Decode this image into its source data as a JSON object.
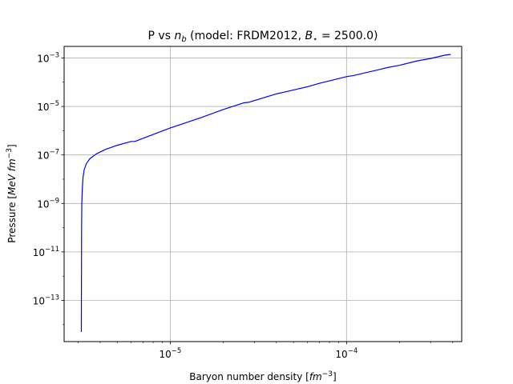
{
  "chart_data": {
    "type": "line",
    "title_prefix": "P vs ",
    "title_var": "n",
    "title_var_sub": "b",
    "title_mid": " (model: FRDM2012, ",
    "title_b": "B",
    "title_b_sub": "⋆",
    "title_suffix": " = 2500.0)",
    "xlabel_text": "Baryon number density [",
    "xlabel_unit": "fm",
    "xlabel_exp": "−3",
    "xlabel_close": "]",
    "ylabel_text": "Pressure [",
    "ylabel_unit": "MeV fm",
    "ylabel_exp": "−3",
    "ylabel_close": "]",
    "x_scale": "log",
    "y_scale": "log",
    "xlim": [
      2.5e-06,
      0.00045
    ],
    "ylim": [
      2e-15,
      0.003
    ],
    "x_ticks": [
      {
        "value": 1e-05,
        "base": "10",
        "exp": "−5"
      },
      {
        "value": 0.0001,
        "base": "10",
        "exp": "−4"
      }
    ],
    "y_ticks": [
      {
        "value": 1e-13,
        "base": "10",
        "exp": "−13"
      },
      {
        "value": 1e-11,
        "base": "10",
        "exp": "−11"
      },
      {
        "value": 1e-09,
        "base": "10",
        "exp": "−9"
      },
      {
        "value": 1e-07,
        "base": "10",
        "exp": "−7"
      },
      {
        "value": 1e-05,
        "base": "10",
        "exp": "−5"
      },
      {
        "value": 0.001,
        "base": "10",
        "exp": "−3"
      }
    ],
    "grid": true,
    "line_color": "#0000ff",
    "series": [
      {
        "x": [
          3.13e-06,
          3.14e-06,
          3.15e-06,
          3.17e-06,
          3.2e-06,
          3.25e-06,
          3.35e-06,
          3.5e-06,
          3.8e-06,
          4.3e-06,
          5e-06,
          6e-06,
          6.3e-06,
          8e-06,
          1e-05,
          1.5e-05,
          2e-05,
          2.6e-05,
          2.8e-05,
          4e-05,
          4.5e-05,
          6e-05,
          7e-05,
          0.0001,
          0.00011,
          0.00015,
          0.00017,
          0.0002,
          0.00025,
          0.0003,
          0.00036,
          0.00039
        ],
        "y": [
          5e-15,
          1e-10,
          1e-09,
          4e-09,
          1.2e-08,
          2.5e-08,
          4.5e-08,
          7e-08,
          1.1e-07,
          1.7e-07,
          2.5e-07,
          3.6e-07,
          3.6e-07,
          7e-07,
          1.3e-06,
          3.5e-06,
          7.5e-06,
          1.4e-05,
          1.5e-05,
          3.3e-05,
          4e-05,
          6.5e-05,
          9e-05,
          0.00017,
          0.00019,
          0.00032,
          0.0004,
          0.0005,
          0.00075,
          0.00095,
          0.0013,
          0.0014
        ]
      }
    ]
  }
}
